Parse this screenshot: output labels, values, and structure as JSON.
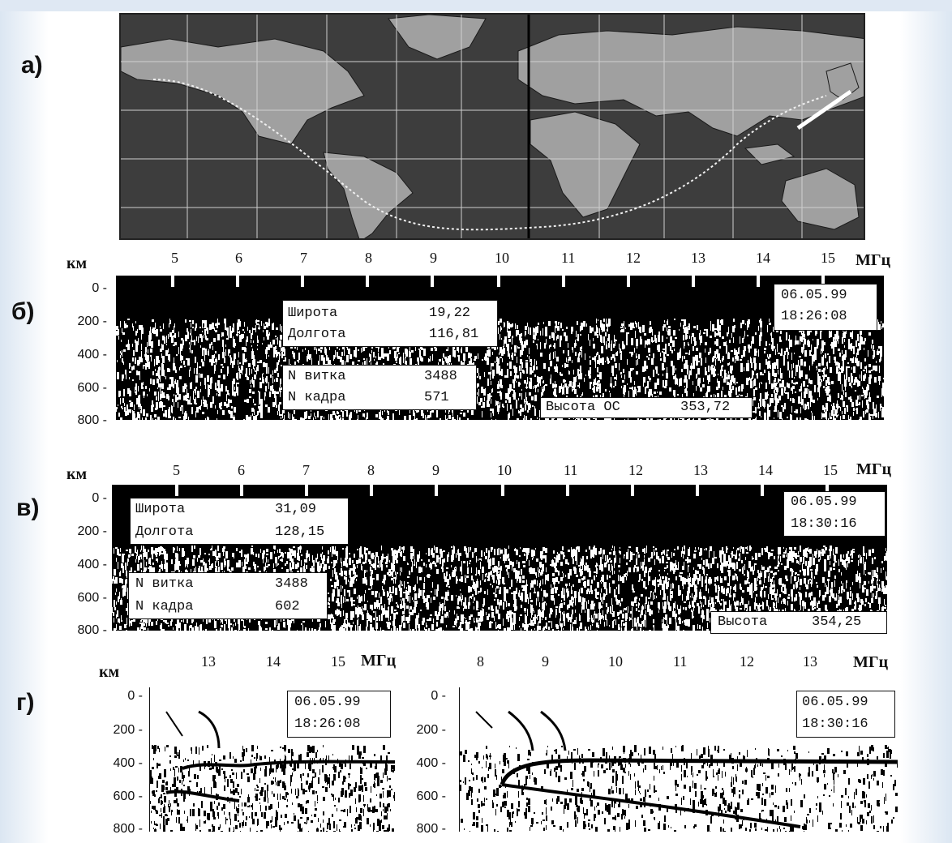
{
  "panels": {
    "a": "а)",
    "b": "б)",
    "v": "в)",
    "g": "г)"
  },
  "units": {
    "km": "км",
    "mhz": "МГц"
  },
  "freq_ticks_main": [
    "5",
    "6",
    "7",
    "8",
    "9",
    "10",
    "11",
    "12",
    "13",
    "14",
    "15"
  ],
  "depth_ticks": [
    "0",
    "200",
    "400",
    "600",
    "800"
  ],
  "panel_b": {
    "date": "06.05.99",
    "time": "18:26:08",
    "lat_label": "Широта",
    "lat_value": "19,22",
    "lon_label": "Долгота",
    "lon_value": "116,81",
    "orbit_label": "N витка",
    "orbit_value": "3488",
    "frame_label": "N кадра",
    "frame_value": "571",
    "height_label": "Высота ОС",
    "height_value": "353,72"
  },
  "panel_v": {
    "date": "06.05.99",
    "time": "18:30:16",
    "lat_label": "Широта",
    "lat_value": "31,09",
    "lon_label": "Долгота",
    "lon_value": "128,15",
    "orbit_label": "N витка",
    "orbit_value": "3488",
    "frame_label": "N кадра",
    "frame_value": "602",
    "height_label": "Высота",
    "height_value": "354,25"
  },
  "panel_g_left": {
    "freq_ticks": [
      "13",
      "14",
      "15"
    ],
    "date": "06.05.99",
    "time": "18:26:08"
  },
  "panel_g_right": {
    "freq_ticks": [
      "8",
      "9",
      "10",
      "11",
      "12",
      "13"
    ],
    "date": "06.05.99",
    "time": "18:30:16"
  },
  "colors": {
    "ionogram_bg": "#000000",
    "map_ocean": "#3d3d3d",
    "map_land": "#a0a0a0",
    "track": "#ffffff"
  }
}
